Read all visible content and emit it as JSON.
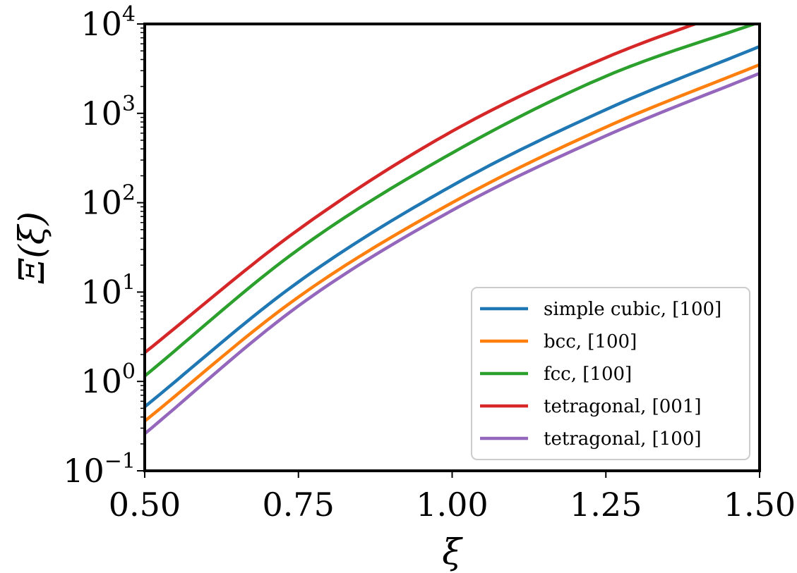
{
  "chart_data": {
    "type": "line",
    "xlabel": "ξ",
    "ylabel": "Ξ(ξ)",
    "xscale": "linear",
    "yscale": "log",
    "xlim": [
      0.5,
      1.5
    ],
    "ylim": [
      0.1,
      10000
    ],
    "x_ticks": [
      "0.50",
      "0.75",
      "1.00",
      "1.25",
      "1.50"
    ],
    "y_ticks": [
      {
        "base": "10",
        "exp": "−1",
        "value": 0.1
      },
      {
        "base": "10",
        "exp": "0",
        "value": 1
      },
      {
        "base": "10",
        "exp": "1",
        "value": 10
      },
      {
        "base": "10",
        "exp": "2",
        "value": 100
      },
      {
        "base": "10",
        "exp": "3",
        "value": 1000
      },
      {
        "base": "10",
        "exp": "4",
        "value": 10000
      }
    ],
    "grid": false,
    "legend_position": "lower-right",
    "x": [
      0.5,
      0.75,
      1.0,
      1.25,
      1.5
    ],
    "series": [
      {
        "name": "simple cubic, [100]",
        "color": "#1f77b4",
        "values": [
          0.52,
          13,
          155,
          1100,
          5600
        ]
      },
      {
        "name": "bcc, [100]",
        "color": "#ff7f0e",
        "values": [
          0.36,
          8.8,
          100,
          700,
          3500
        ]
      },
      {
        "name": "fcc, [100]",
        "color": "#2ca02c",
        "values": [
          1.15,
          30,
          360,
          2600,
          10500
        ]
      },
      {
        "name": "tetragonal, [001]",
        "color": "#d62728",
        "values": [
          2.1,
          50,
          630,
          4200,
          18000
        ]
      },
      {
        "name": "tetragonal, [100]",
        "color": "#9467bd",
        "values": [
          0.26,
          7.0,
          82,
          560,
          2800
        ]
      }
    ]
  }
}
